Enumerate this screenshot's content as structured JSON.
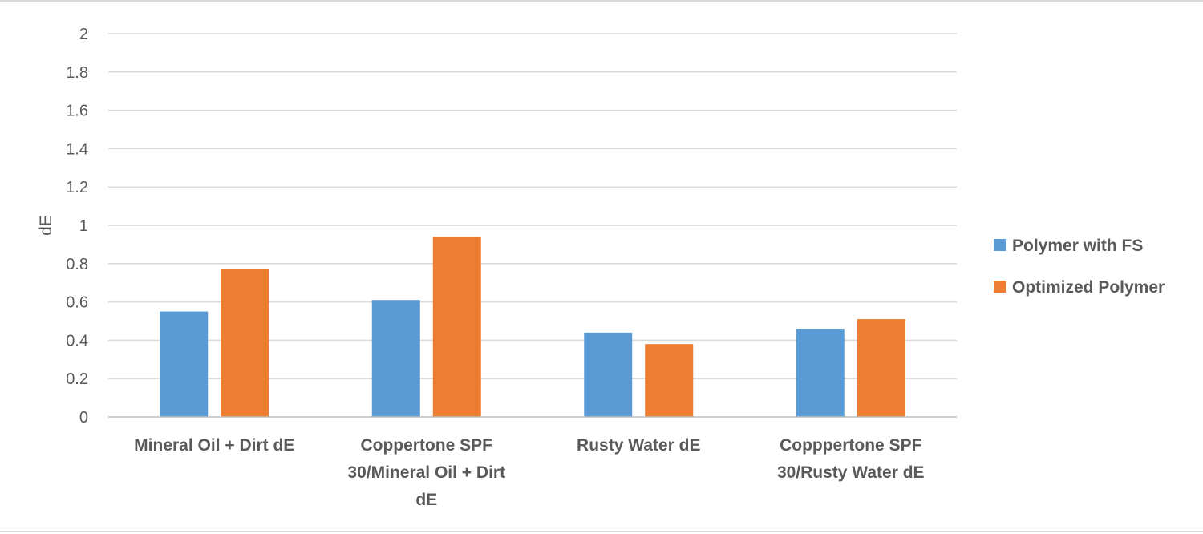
{
  "chart_data": {
    "type": "bar",
    "ylabel": "dE",
    "ylim": [
      0,
      2
    ],
    "yticks": [
      "0",
      "0.2",
      "0.4",
      "0.6",
      "0.8",
      "1",
      "1.2",
      "1.4",
      "1.6",
      "1.8",
      "2"
    ],
    "grid": true,
    "legend_position": "right",
    "categories": [
      [
        "Mineral Oil + Dirt dE"
      ],
      [
        "Coppertone SPF",
        "30/Mineral Oil + Dirt",
        "dE"
      ],
      [
        "Rusty Water dE"
      ],
      [
        "Copppertone SPF",
        "30/Rusty Water dE"
      ]
    ],
    "series": [
      {
        "name": "Polymer with FS",
        "color": "#5b9bd5",
        "values": [
          0.55,
          0.61,
          0.44,
          0.46
        ]
      },
      {
        "name": "Optimized Polymer",
        "color": "#ed7d31",
        "values": [
          0.77,
          0.94,
          0.38,
          0.51
        ]
      }
    ]
  }
}
